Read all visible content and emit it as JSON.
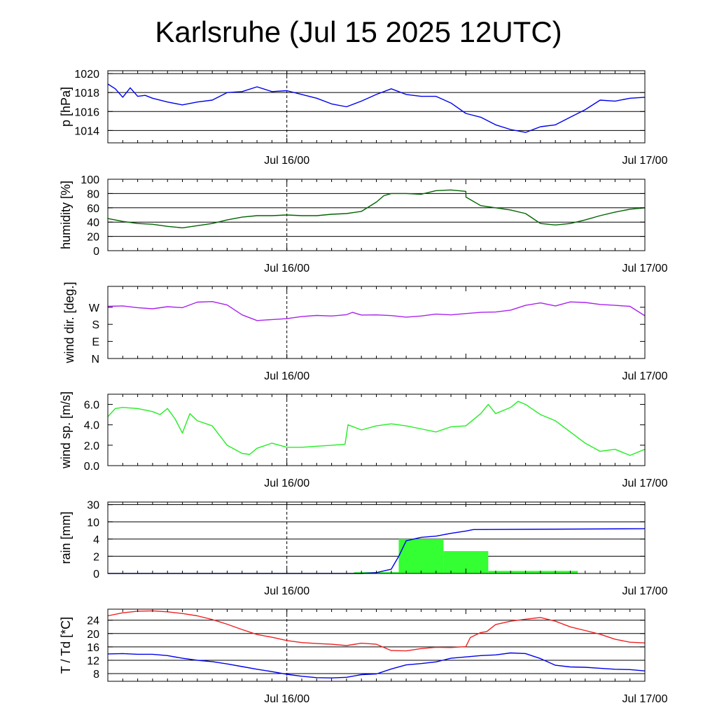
{
  "title": "Karlsruhe (Jul 15 2025 12UTC)",
  "colors": {
    "pressure": "#0000ee",
    "humidity": "#006400",
    "wind_dir": "#aa22ee",
    "wind_speed": "#22ee22",
    "rain_bar": "#33ff33",
    "rain_accum": "#0000ee",
    "temperature": "#ee2222",
    "dewpoint": "#0000ee"
  },
  "x_tick_labels": {
    "day1": "Jul 16/00",
    "day2": "Jul 17/00"
  },
  "chart_data": [
    {
      "type": "line",
      "ylabel": "p [hPa]",
      "ylim": [
        1012.7,
        1020.3
      ],
      "yticks": [
        1020,
        1018,
        1016,
        1014
      ],
      "grid": true,
      "series": [
        {
          "x": [
            0,
            0.5,
            1,
            1.5,
            2,
            2.5,
            3,
            4,
            5,
            6,
            7,
            8,
            9,
            10,
            11,
            12,
            13,
            14,
            15,
            16,
            17,
            18,
            19,
            20,
            21,
            22,
            23,
            24,
            25,
            26,
            27,
            28,
            29,
            30,
            31,
            32,
            33,
            34,
            35,
            36
          ],
          "values": [
            1018.9,
            1018.4,
            1017.5,
            1018.5,
            1017.6,
            1017.7,
            1017.4,
            1017.0,
            1016.7,
            1017.0,
            1017.2,
            1018.0,
            1018.1,
            1018.6,
            1018.1,
            1018.2,
            1017.8,
            1017.4,
            1016.8,
            1016.5,
            1017.1,
            1017.8,
            1018.4,
            1017.8,
            1017.6,
            1017.6,
            1016.9,
            1015.8,
            1015.4,
            1014.6,
            1014.1,
            1013.8,
            1014.4,
            1014.6,
            1015.4,
            1016.2,
            1017.2,
            1017.1,
            1017.4,
            1017.5
          ]
        }
      ]
    },
    {
      "type": "line",
      "ylabel": "humidity [%]",
      "ylim": [
        0,
        100
      ],
      "yticks": [
        100,
        80,
        60,
        40,
        20,
        0
      ],
      "grid": true,
      "series": [
        {
          "x": [
            0,
            1,
            2,
            3,
            4,
            5,
            6,
            7,
            8,
            9,
            10,
            11,
            12,
            13,
            14,
            15,
            16,
            17,
            18,
            18.5,
            19,
            20,
            21,
            22,
            23,
            24,
            24.01,
            25,
            26,
            27,
            28,
            29,
            30,
            31,
            32,
            33,
            34,
            35,
            36
          ],
          "values": [
            45,
            41,
            38,
            37,
            34,
            32,
            35,
            38,
            43,
            47,
            49,
            49,
            50,
            49,
            49,
            51,
            52,
            55,
            68,
            77,
            80,
            80,
            79,
            84,
            85,
            83,
            75,
            63,
            60,
            57,
            52,
            38,
            36,
            38,
            43,
            49,
            54,
            58,
            60
          ]
        }
      ]
    },
    {
      "type": "line",
      "ylabel": "wind dir. [deg.]",
      "ylim": [
        0,
        380
      ],
      "yticks": [
        270,
        180,
        90,
        0
      ],
      "ytick_labels": [
        "W",
        "S",
        "E",
        "N"
      ],
      "grid": false,
      "series": [
        {
          "x": [
            0,
            1,
            2,
            3,
            4,
            5,
            6,
            7,
            8,
            9,
            10,
            11,
            12,
            13,
            14,
            15,
            16,
            16.4,
            17,
            18,
            19,
            20,
            21,
            22,
            23,
            24,
            25,
            26,
            27,
            28,
            29,
            30,
            31,
            32,
            33,
            34,
            35,
            36
          ],
          "values": [
            275,
            277,
            268,
            262,
            273,
            268,
            297,
            300,
            282,
            230,
            200,
            205,
            210,
            221,
            227,
            224,
            231,
            243,
            229,
            230,
            226,
            218,
            224,
            234,
            230,
            237,
            243,
            245,
            255,
            280,
            293,
            277,
            298,
            295,
            285,
            280,
            275,
            225
          ]
        }
      ]
    },
    {
      "type": "line",
      "ylabel": "wind sp. [m/s]",
      "ylim": [
        0,
        7
      ],
      "yticks": [
        6.0,
        4.0,
        2.0,
        0.0
      ],
      "ytick_labels": [
        "6.0",
        "4.0",
        "2.0",
        "0.0"
      ],
      "grid": false,
      "series": [
        {
          "x": [
            0,
            0.5,
            1,
            2,
            3,
            3.5,
            4,
            4.5,
            5,
            5.5,
            6,
            7,
            8,
            9,
            9.5,
            10,
            11,
            12,
            13,
            14,
            15,
            15.9,
            16.1,
            17,
            18,
            19,
            20,
            21,
            22,
            23,
            24,
            25,
            25.5,
            26,
            27,
            27.5,
            28,
            29,
            30,
            31,
            32,
            33,
            34,
            35,
            36
          ],
          "values": [
            4.8,
            5.6,
            5.7,
            5.6,
            5.3,
            5.0,
            5.6,
            4.6,
            3.2,
            5.1,
            4.4,
            3.9,
            2.0,
            1.2,
            1.1,
            1.7,
            2.2,
            1.8,
            1.8,
            1.9,
            2.0,
            2.1,
            4.0,
            3.5,
            3.9,
            4.1,
            3.9,
            3.6,
            3.3,
            3.8,
            3.9,
            5.1,
            6.0,
            5.1,
            5.7,
            6.3,
            6.0,
            5.0,
            4.4,
            3.3,
            2.2,
            1.4,
            1.6,
            1.0,
            1.6
          ]
        }
      ]
    },
    {
      "type": "bar",
      "ylabel": "rain [mm]",
      "yticks": [
        30,
        10,
        4,
        2,
        0
      ],
      "ytick_labels": [
        "30",
        "10",
        "4",
        "2",
        "0"
      ],
      "grid": true,
      "bars": [
        {
          "x_start": 16.5,
          "x_end": 19.5,
          "value": 0.15
        },
        {
          "x_start": 19.5,
          "x_end": 22.5,
          "value": 4.0
        },
        {
          "x_start": 22.5,
          "x_end": 25.5,
          "value": 2.6
        },
        {
          "x_start": 25.5,
          "x_end": 31.5,
          "value": 0.3
        }
      ],
      "series": [
        {
          "name": "accumulated",
          "x": [
            0,
            17,
            18,
            19,
            19.5,
            20,
            21,
            22,
            23,
            24,
            24.5,
            36
          ],
          "values": [
            0,
            0,
            0.1,
            0.5,
            2.0,
            3.8,
            4.6,
            5.0,
            6.0,
            6.8,
            7.3,
            7.6
          ]
        }
      ]
    },
    {
      "type": "line",
      "ylabel": "T / Td [*C]",
      "ylim": [
        5.7,
        27.3
      ],
      "yticks": [
        24,
        20,
        16,
        12,
        8
      ],
      "grid": true,
      "series": [
        {
          "name": "T",
          "x": [
            0,
            1,
            2,
            3,
            4,
            5,
            6,
            7,
            8,
            9,
            10,
            11,
            12,
            13,
            14,
            15,
            16,
            17,
            18,
            19,
            20,
            21,
            22,
            23,
            24,
            24.3,
            25,
            25.4,
            26,
            27,
            28,
            29,
            30,
            31,
            32,
            33,
            34,
            35,
            36
          ],
          "values": [
            25.3,
            26.2,
            26.7,
            26.8,
            26.5,
            26.0,
            25.3,
            24.2,
            22.8,
            21.2,
            19.7,
            18.9,
            17.9,
            17.3,
            17.0,
            16.8,
            16.4,
            17.1,
            16.8,
            14.9,
            14.8,
            15.5,
            15.9,
            15.8,
            16.1,
            18.8,
            20.3,
            20.6,
            22.7,
            23.7,
            24.3,
            24.8,
            23.7,
            22.0,
            20.9,
            19.8,
            18.3,
            17.4,
            17.2
          ]
        },
        {
          "name": "Td",
          "x": [
            0,
            1,
            2,
            3,
            4,
            5,
            6,
            7,
            8,
            9,
            10,
            11,
            12,
            13,
            14,
            15,
            16,
            17,
            18,
            19,
            20,
            21,
            22,
            23,
            24,
            25,
            26,
            27,
            28,
            29,
            30,
            31,
            32,
            33,
            34,
            35,
            36
          ],
          "values": [
            13.9,
            14.0,
            13.8,
            13.8,
            13.4,
            12.6,
            12.0,
            11.6,
            10.9,
            10.1,
            9.3,
            8.6,
            7.8,
            7.2,
            6.8,
            6.7,
            6.9,
            7.7,
            7.9,
            9.4,
            10.6,
            11.0,
            11.5,
            12.6,
            13.0,
            13.4,
            13.6,
            14.2,
            14.0,
            12.5,
            10.5,
            10.0,
            9.9,
            9.6,
            9.3,
            9.2,
            8.8
          ]
        }
      ]
    }
  ]
}
